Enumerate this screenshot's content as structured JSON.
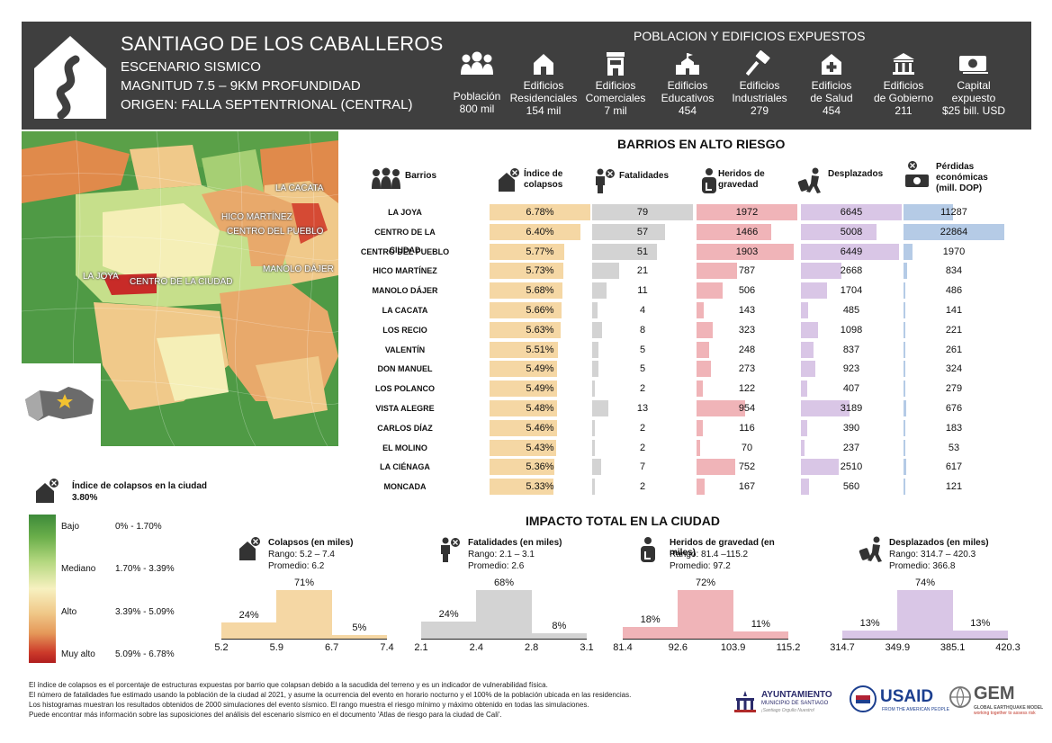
{
  "header": {
    "title": "SANTIAGO DE LOS CABALLEROS",
    "line1": "ESCENARIO SISMICO",
    "line2": "MAGNITUD 7.5 – 9KM PROFUNDIDAD",
    "line3": "ORIGEN:  FALLA SEPTENTRIONAL (CENTRAL)",
    "exposure_title": "POBLACION Y EDIFICIOS EXPUESTOS",
    "exposure": [
      {
        "icon": "people-icon",
        "label1": "",
        "label2": "Población",
        "value": "800 mil"
      },
      {
        "icon": "house-icon",
        "label1": "Edificios",
        "label2": "Residenciales",
        "value": "154 mil"
      },
      {
        "icon": "shop-icon",
        "label1": "Edificios",
        "label2": "Comerciales",
        "value": "7 mil"
      },
      {
        "icon": "school-icon",
        "label1": "Edificios",
        "label2": "Educativos",
        "value": "454"
      },
      {
        "icon": "hammer-icon",
        "label1": "Edificios",
        "label2": "Industriales",
        "value": "279"
      },
      {
        "icon": "health-icon",
        "label1": "Edificios",
        "label2": "de Salud",
        "value": "454"
      },
      {
        "icon": "government-icon",
        "label1": "Edificios",
        "label2": "de Gobierno",
        "value": "211"
      },
      {
        "icon": "money-icon",
        "label1": "Capital",
        "label2": "expuesto",
        "value": "$25 bill. USD"
      }
    ]
  },
  "map": {
    "labels": [
      "LA CACATA",
      "HICO MARTÍNEZ",
      "CENTRO DEL PUEBLO",
      "MANOLO DÁJER",
      "LA JOYA",
      "CENTRO DE LA CIUDAD"
    ]
  },
  "barrios": {
    "title": "BARRIOS EN ALTO RIESGO",
    "headers": {
      "name": "Barrios",
      "collapse": "Índice de colapsos",
      "fatal": "Fatalidades",
      "injured": "Heridos de gravedad",
      "displaced": "Desplazados",
      "losses": "Pérdidas económicas (mill. DOP)"
    },
    "colors": {
      "collapse": "#f5d7a4",
      "fatal": "#d3d3d3",
      "injured": "#f0b4b8",
      "displaced": "#d9c6e6",
      "losses": "#b5cbe6"
    },
    "rows": [
      {
        "name": "LA JOYA",
        "collapse": "6.78%",
        "fatal": "79",
        "injured": "1972",
        "displaced": "6645",
        "losses": "11287"
      },
      {
        "name": "CENTRO DE LA CIUDAD",
        "collapse": "6.40%",
        "fatal": "57",
        "injured": "1466",
        "displaced": "5008",
        "losses": "22864"
      },
      {
        "name": "CENTRO DEL PUEBLO",
        "collapse": "5.77%",
        "fatal": "51",
        "injured": "1903",
        "displaced": "6449",
        "losses": "1970"
      },
      {
        "name": "HICO MARTÍNEZ",
        "collapse": "5.73%",
        "fatal": "21",
        "injured": "787",
        "displaced": "2668",
        "losses": "834"
      },
      {
        "name": "MANOLO DÁJER",
        "collapse": "5.68%",
        "fatal": "11",
        "injured": "506",
        "displaced": "1704",
        "losses": "486"
      },
      {
        "name": "LA CACATA",
        "collapse": "5.66%",
        "fatal": "4",
        "injured": "143",
        "displaced": "485",
        "losses": "141"
      },
      {
        "name": "LOS RECIO",
        "collapse": "5.63%",
        "fatal": "8",
        "injured": "323",
        "displaced": "1098",
        "losses": "221"
      },
      {
        "name": "VALENTÍN",
        "collapse": "5.51%",
        "fatal": "5",
        "injured": "248",
        "displaced": "837",
        "losses": "261"
      },
      {
        "name": "DON MANUEL",
        "collapse": "5.49%",
        "fatal": "5",
        "injured": "273",
        "displaced": "923",
        "losses": "324"
      },
      {
        "name": "LOS POLANCO",
        "collapse": "5.49%",
        "fatal": "2",
        "injured": "122",
        "displaced": "407",
        "losses": "279"
      },
      {
        "name": "VISTA ALEGRE",
        "collapse": "5.48%",
        "fatal": "13",
        "injured": "954",
        "displaced": "3189",
        "losses": "676"
      },
      {
        "name": "CARLOS DÍAZ",
        "collapse": "5.46%",
        "fatal": "2",
        "injured": "116",
        "displaced": "390",
        "losses": "183"
      },
      {
        "name": "EL MOLINO",
        "collapse": "5.43%",
        "fatal": "2",
        "injured": "70",
        "displaced": "237",
        "losses": "53"
      },
      {
        "name": "LA CIÉNAGA",
        "collapse": "5.36%",
        "fatal": "7",
        "injured": "752",
        "displaced": "2510",
        "losses": "617"
      },
      {
        "name": "MONCADA",
        "collapse": "5.33%",
        "fatal": "2",
        "injured": "167",
        "displaced": "560",
        "losses": "121"
      }
    ]
  },
  "legend": {
    "title": "Índice de colapsos en la ciudad",
    "value": "3.80%",
    "levels": [
      {
        "name": "Bajo",
        "range": "0% - 1.70%"
      },
      {
        "name": "Mediano",
        "range": "1.70% - 3.39%"
      },
      {
        "name": "Alto",
        "range": "3.39% - 5.09%"
      },
      {
        "name": "Muy alto",
        "range": "5.09% - 6.78%"
      }
    ]
  },
  "impact": {
    "title": "IMPACTO TOTAL EN LA CIUDAD",
    "panels": [
      {
        "icon": "house-collapse-icon",
        "title": "Colapsos (en miles)",
        "range": "Rango: 5.2 – 7.4",
        "mean": "Promedio: 6.2",
        "color": "#f5d7a4",
        "ticks": [
          "5.2",
          "5.9",
          "6.7",
          "7.4"
        ],
        "pcts": [
          24,
          71,
          5
        ],
        "labels": [
          "24%",
          "71%",
          "5%"
        ]
      },
      {
        "icon": "person-fatal-icon",
        "title": "Fatalidades (en miles)",
        "range": "Rango: 2.1 – 3.1",
        "mean": "Promedio: 2.6",
        "color": "#d3d3d3",
        "ticks": [
          "2.1",
          "2.4",
          "2.8",
          "3.1"
        ],
        "pcts": [
          24,
          68,
          8
        ],
        "labels": [
          "24%",
          "68%",
          "8%"
        ]
      },
      {
        "icon": "injured-icon",
        "title": "Heridos de gravedad (en miles)",
        "range": "Rango: 81.4 –115.2",
        "mean": "Promedio: 97.2",
        "color": "#f0b4b8",
        "ticks": [
          "81.4",
          "92.6",
          "103.9",
          "115.2"
        ],
        "pcts": [
          18,
          72,
          11
        ],
        "labels": [
          "18%",
          "72%",
          "11%"
        ]
      },
      {
        "icon": "displaced-icon",
        "title": "Desplazados (en miles)",
        "range": "Rango: 314.7 – 420.3",
        "mean": "Promedio: 366.8",
        "color": "#d9c6e6",
        "ticks": [
          "314.7",
          "349.9",
          "385.1",
          "420.3"
        ],
        "pcts": [
          13,
          74,
          13
        ],
        "labels": [
          "13%",
          "74%",
          "13%"
        ]
      }
    ]
  },
  "footnotes": [
    "El índice de colapsos es el porcentaje de estructuras expuestas por barrio que colapsan  debido a la sacudida del terreno y es un indicador de vulnerabilidad física.",
    "El número de fatalidades fue estimado usando la población de la ciudad al 2021, y asume la ocurrencia del evento en horario nocturno y el 100% de la población ubicada en las residencias.",
    "Los histogramas muestran los resultados obtenidos de 2000 simulaciones del evento sísmico. El rango muestra el riesgo mínimo y máximo obtenido en todas las simulaciones.",
    "Puede encontrar más información sobre las suposiciones del análisis del escenario sísmico en el documento 'Atlas de riesgo para la ciudad de Cali'."
  ],
  "logos": {
    "ayto1": "AYUNTAMIENTO",
    "ayto2": "MUNICIPIO DE SANTIAGO",
    "ayto3": "¡Santiago Orgullo Nuestro!",
    "usaid": "USAID",
    "usaid_sub": "FROM THE AMERICAN PEOPLE",
    "gem": "GEM",
    "gem_sub1": "GLOBAL EARTHQUAKE MODEL",
    "gem_sub2": "working together to assess risk"
  }
}
